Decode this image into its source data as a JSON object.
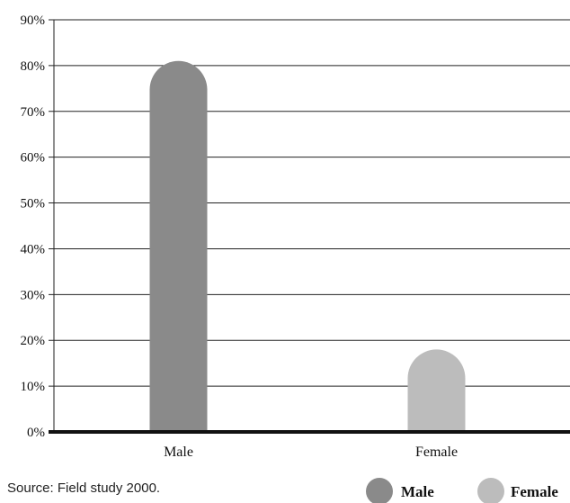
{
  "chart_data": {
    "type": "bar",
    "categories": [
      "Male",
      "Female"
    ],
    "values": [
      81,
      18
    ],
    "ylim": [
      0,
      90
    ],
    "yticks": [
      0,
      10,
      20,
      30,
      40,
      50,
      60,
      70,
      80,
      90
    ],
    "ytick_suffix": "%",
    "grid": true,
    "legend_position": "bottom-right",
    "series_colors": [
      "#8a8a8a",
      "#bcbcbc"
    ],
    "legend": [
      {
        "label": "Male",
        "color": "#8a8a8a"
      },
      {
        "label": "Female",
        "color": "#bcbcbc"
      }
    ]
  },
  "source_text": "Source: Field study 2000."
}
